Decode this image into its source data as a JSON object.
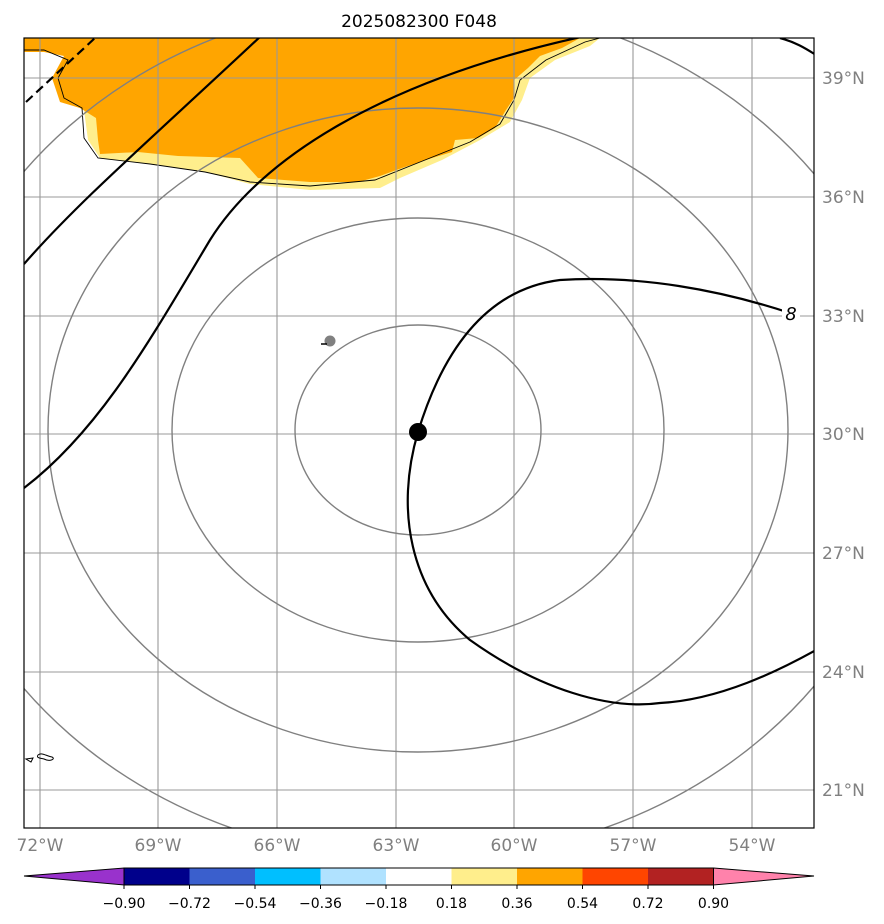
{
  "title": "2025082300 F048",
  "map": {
    "lon_labels": [
      "72°W",
      "69°W",
      "66°W",
      "63°W",
      "60°W",
      "57°W",
      "54°W"
    ],
    "lat_labels": [
      "39°N",
      "36°N",
      "33°N",
      "30°N",
      "27°N",
      "24°N",
      "21°N"
    ],
    "contour_label": "8",
    "colors": {
      "orange": "#ffa500",
      "light_yellow": "#ffee8c",
      "grid": "#999999",
      "range_rings": "#808080",
      "contour": "#000000"
    }
  },
  "colorbar": {
    "tick_labels": [
      "−0.90",
      "−0.72",
      "−0.54",
      "−0.36",
      "−0.18",
      "0.18",
      "0.36",
      "0.54",
      "0.72",
      "0.90"
    ],
    "colors": [
      "#9932cc",
      "#00008b",
      "#3a5fcd",
      "#00bfff",
      "#b0e2ff",
      "#ffffff",
      "#ffee8c",
      "#ffa500",
      "#ff4500",
      "#b22222",
      "#ff82ab"
    ]
  }
}
